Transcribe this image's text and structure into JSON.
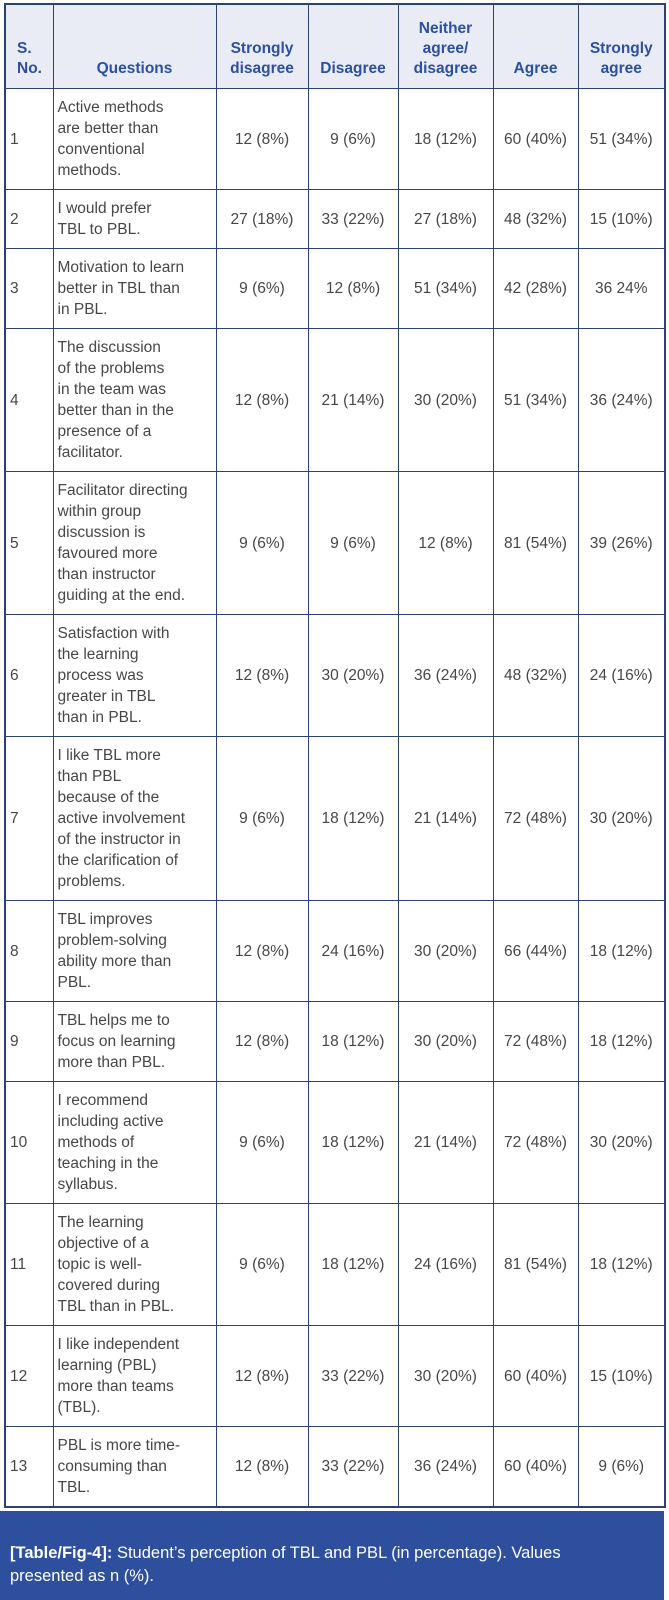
{
  "colors": {
    "border_navy": "#2c4270",
    "header_bg": "#e9ecf5",
    "header_text_blue": "#2d4f9f",
    "body_text": "#474747",
    "caption_bg": "#2d4f9e",
    "caption_text": "#ffffff",
    "page_bg": "#ffffff"
  },
  "table": {
    "columns": [
      {
        "key": "sno",
        "label": "S.\nNo."
      },
      {
        "key": "question",
        "label": "Questions"
      },
      {
        "key": "strongly_disagree",
        "label": "Strongly\ndisagree"
      },
      {
        "key": "disagree",
        "label": "Disagree"
      },
      {
        "key": "neither",
        "label": "Neither\nagree/\ndisagree"
      },
      {
        "key": "agree",
        "label": "Agree"
      },
      {
        "key": "strongly_agree",
        "label": "Strongly\nagree"
      }
    ],
    "rows": [
      {
        "sno": "1",
        "question": "Active methods\nare better than\nconventional\nmethods.",
        "strongly_disagree": "12 (8%)",
        "disagree": "9 (6%)",
        "neither": "18 (12%)",
        "agree": "60 (40%)",
        "strongly_agree": "51 (34%)"
      },
      {
        "sno": "2",
        "question": "I would prefer\nTBL to PBL.",
        "strongly_disagree": "27 (18%)",
        "disagree": "33 (22%)",
        "neither": "27 (18%)",
        "agree": "48 (32%)",
        "strongly_agree": "15 (10%)"
      },
      {
        "sno": "3",
        "question": "Motivation to learn\nbetter in TBL than\nin PBL.",
        "strongly_disagree": "9 (6%)",
        "disagree": "12 (8%)",
        "neither": "51 (34%)",
        "agree": "42 (28%)",
        "strongly_agree": "36 24%"
      },
      {
        "sno": "4",
        "question": "The discussion\nof the problems\nin the team was\nbetter than in the\npresence of a\nfacilitator.",
        "strongly_disagree": "12 (8%)",
        "disagree": "21 (14%)",
        "neither": "30 (20%)",
        "agree": "51 (34%)",
        "strongly_agree": "36 (24%)"
      },
      {
        "sno": "5",
        "question": "Facilitator directing\nwithin group\ndiscussion is\nfavoured more\nthan instructor\nguiding at the end.",
        "strongly_disagree": "9 (6%)",
        "disagree": "9 (6%)",
        "neither": "12 (8%)",
        "agree": "81 (54%)",
        "strongly_agree": "39 (26%)"
      },
      {
        "sno": "6",
        "question": "Satisfaction with\nthe learning\nprocess was\ngreater in TBL\nthan in PBL.",
        "strongly_disagree": "12 (8%)",
        "disagree": "30 (20%)",
        "neither": "36 (24%)",
        "agree": "48 (32%)",
        "strongly_agree": "24 (16%)"
      },
      {
        "sno": "7",
        "question": "I like TBL more\nthan PBL\nbecause of the\nactive involvement\nof the instructor in\nthe clarification of\nproblems.",
        "strongly_disagree": "9 (6%)",
        "disagree": "18 (12%)",
        "neither": "21 (14%)",
        "agree": "72 (48%)",
        "strongly_agree": "30 (20%)"
      },
      {
        "sno": "8",
        "question": "TBL improves\nproblem-solving\nability more than\nPBL.",
        "strongly_disagree": "12 (8%)",
        "disagree": "24 (16%)",
        "neither": "30 (20%)",
        "agree": "66 (44%)",
        "strongly_agree": "18 (12%)"
      },
      {
        "sno": "9",
        "question": "TBL helps me to\nfocus on learning\nmore than PBL.",
        "strongly_disagree": "12 (8%)",
        "disagree": "18 (12%)",
        "neither": "30 (20%)",
        "agree": "72 (48%)",
        "strongly_agree": "18 (12%)"
      },
      {
        "sno": "10",
        "question": "I recommend\nincluding active\nmethods of\nteaching in the\nsyllabus.",
        "strongly_disagree": "9 (6%)",
        "disagree": "18 (12%)",
        "neither": "21 (14%)",
        "agree": "72 (48%)",
        "strongly_agree": "30 (20%)"
      },
      {
        "sno": "11",
        "question": "The learning\nobjective of a\ntopic is well-\ncovered during\nTBL than in PBL.",
        "strongly_disagree": "9 (6%)",
        "disagree": "18 (12%)",
        "neither": "24 (16%)",
        "agree": "81 (54%)",
        "strongly_agree": "18 (12%)"
      },
      {
        "sno": "12",
        "question": "I like independent\nlearning (PBL)\nmore than teams\n(TBL).",
        "strongly_disagree": "12 (8%)",
        "disagree": "33 (22%)",
        "neither": "30 (20%)",
        "agree": "60 (40%)",
        "strongly_agree": "15 (10%)"
      },
      {
        "sno": "13",
        "question": "PBL is more time-\nconsuming than\nTBL.",
        "strongly_disagree": "12 (8%)",
        "disagree": "33 (22%)",
        "neither": "36 (24%)",
        "agree": "60 (40%)",
        "strongly_agree": "9 (6%)"
      }
    ]
  },
  "caption": {
    "tag": "[Table/Fig-4]:",
    "text": " Student’s perception of TBL and PBL (in percentage). Values\npresented as n (%)."
  }
}
